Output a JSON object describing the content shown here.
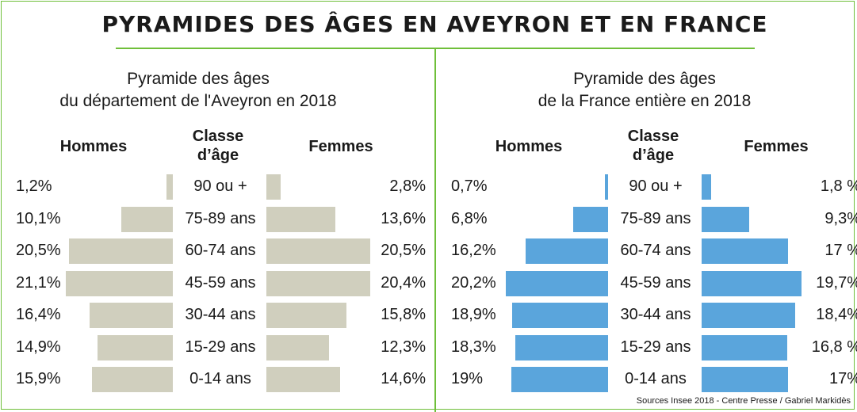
{
  "title": "PYRAMIDES DES ÂGES EN AVEYRON ET EN FRANCE",
  "source": "Sources Insee 2018 - Centre Presse / Gabriel Markidès",
  "colors": {
    "frame": "#6fbf3a",
    "aveyron_bar": "#d0cfbe",
    "france_bar": "#5aa5dc",
    "text": "#1a1a1a"
  },
  "chart_data": [
    {
      "type": "bar",
      "subtitle_lines": [
        "Pyramide des âges",
        "du département de l'Aveyron en 2018"
      ],
      "left_header": "Hommes",
      "center_header_lines": [
        "Classe",
        "d’âge"
      ],
      "right_header": "Femmes",
      "categories": [
        "90 ou +",
        "75-89 ans",
        "60-74 ans",
        "45-59 ans",
        "30-44 ans",
        "15-29 ans",
        "0-14 ans"
      ],
      "series": [
        {
          "name": "Hommes",
          "values": [
            1.2,
            10.1,
            20.5,
            21.1,
            16.4,
            14.9,
            15.9
          ],
          "labels": [
            "1,2%",
            "10,1%",
            "20,5%",
            "21,1%",
            "16,4%",
            "14,9%",
            "15,9%"
          ]
        },
        {
          "name": "Femmes",
          "values": [
            2.8,
            13.6,
            20.5,
            20.4,
            15.8,
            12.3,
            14.6
          ],
          "labels": [
            "2,8%",
            "13,6%",
            "20,5%",
            "20,4%",
            "15,8%",
            "12,3%",
            "14,6%"
          ]
        }
      ],
      "color": "#d0cfbe"
    },
    {
      "type": "bar",
      "subtitle_lines": [
        "Pyramide des âges",
        "de la France entière en 2018"
      ],
      "left_header": "Hommes",
      "center_header_lines": [
        "Classe",
        "d’âge"
      ],
      "right_header": "Femmes",
      "categories": [
        "90 ou +",
        "75-89 ans",
        "60-74 ans",
        "45-59 ans",
        "30-44 ans",
        "15-29 ans",
        "0-14 ans"
      ],
      "series": [
        {
          "name": "Hommes",
          "values": [
            0.7,
            6.8,
            16.2,
            20.2,
            18.9,
            18.3,
            19.0
          ],
          "labels": [
            "0,7%",
            "6,8%",
            "16,2%",
            "20,2%",
            "18,9%",
            "18,3%",
            "19%"
          ]
        },
        {
          "name": "Femmes",
          "values": [
            1.8,
            9.3,
            17.0,
            19.7,
            18.4,
            16.8,
            17.0
          ],
          "labels": [
            "1,8 %",
            "9,3%",
            "17 %",
            "19,7%",
            "18,4%",
            "16,8 %",
            "17%"
          ]
        }
      ],
      "color": "#5aa5dc"
    }
  ]
}
